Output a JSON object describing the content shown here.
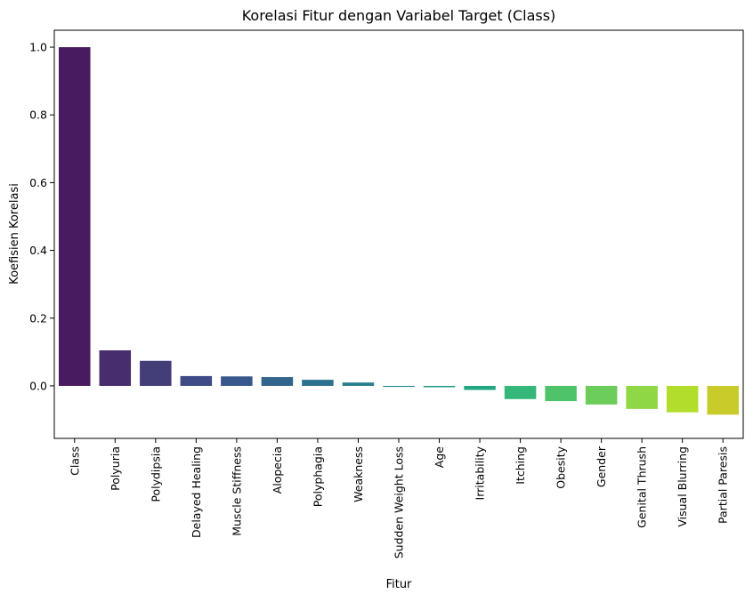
{
  "chart_data": {
    "type": "bar",
    "title": "Korelasi Fitur dengan Variabel Target (Class)",
    "xlabel": "Fitur",
    "ylabel": "Koefisien Korelasi",
    "ylim": [
      -0.155,
      1.05
    ],
    "yticks": [
      0.0,
      0.2,
      0.4,
      0.6,
      0.8,
      1.0
    ],
    "ytick_labels": [
      "0.0",
      "0.2",
      "0.4",
      "0.6",
      "0.8",
      "1.0"
    ],
    "grid": false,
    "legend": "none",
    "categories": [
      "Class",
      "Polyuria",
      "Polydipsia",
      "Delayed Healing",
      "Muscle Stiffness",
      "Alopecia",
      "Polyphagia",
      "Weakness",
      "Sudden Weight Loss",
      "Age",
      "Irritability",
      "Itching",
      "Obesity",
      "Gender",
      "Genital Thrush",
      "Visual Blurring",
      "Partial Paresis"
    ],
    "values": [
      1.0,
      0.105,
      0.074,
      0.029,
      0.028,
      0.026,
      0.018,
      0.01,
      -0.003,
      -0.004,
      -0.012,
      -0.039,
      -0.045,
      -0.055,
      -0.068,
      -0.078,
      -0.085
    ],
    "colors": [
      "#481b60",
      "#472d6e",
      "#433d78",
      "#3e4b87",
      "#38588c",
      "#32658e",
      "#2c728e",
      "#27808e",
      "#228c8c",
      "#1f998a",
      "#22a784",
      "#35b779",
      "#4fc369",
      "#6ccd5a",
      "#8fd744",
      "#b3dd2c",
      "#c8cb2a"
    ]
  }
}
